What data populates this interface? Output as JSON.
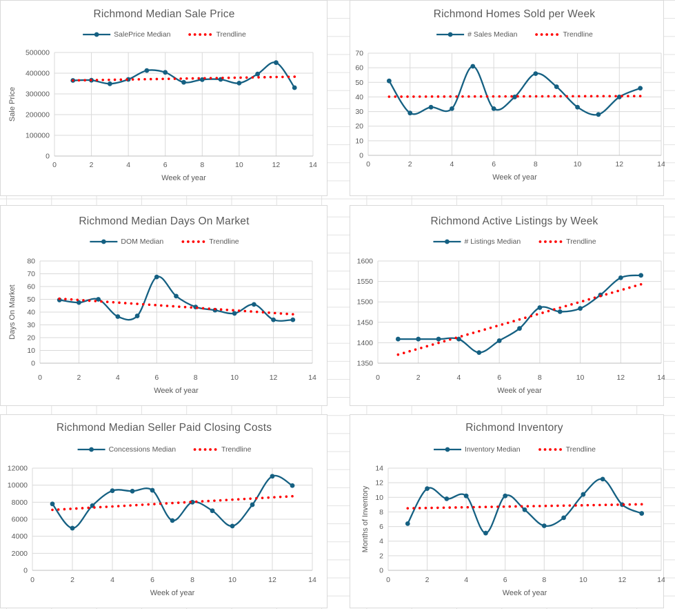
{
  "app": {
    "view": "richmond-market-dashboard"
  },
  "colors": {
    "series": "#156082",
    "trendline": "#ff0000",
    "text": "#595959",
    "grid": "#d9d9d9",
    "axis": "#bfbfbf",
    "chart_border": "#d9d9d9",
    "chart_bg": "#ffffff"
  },
  "chart_data": [
    {
      "type": "line",
      "title": "Richmond Median Sale Price",
      "xlabel": "Week of year",
      "ylabel": "Sale Price",
      "x": [
        1,
        2,
        3,
        4,
        5,
        6,
        7,
        8,
        9,
        10,
        11,
        12,
        13
      ],
      "xlim": [
        0,
        14
      ],
      "xticks": [
        0,
        2,
        4,
        6,
        8,
        10,
        12,
        14
      ],
      "ylim": [
        0,
        500000
      ],
      "yticks": [
        0,
        100000,
        200000,
        300000,
        400000,
        500000
      ],
      "grid": true,
      "legend_position": "top",
      "series": [
        {
          "name": "SalePrice Median",
          "values": [
            365000,
            366000,
            349000,
            370000,
            413000,
            404000,
            356000,
            369000,
            370000,
            352000,
            396000,
            451000,
            330000
          ]
        },
        {
          "name": "Trendline",
          "trend": true,
          "values": [
            365000,
            383000
          ]
        }
      ]
    },
    {
      "type": "line",
      "title": "Richmond Homes Sold per Week",
      "xlabel": "Week of year",
      "ylabel": "",
      "x": [
        1,
        2,
        3,
        4,
        5,
        6,
        7,
        8,
        9,
        10,
        11,
        12,
        13
      ],
      "xlim": [
        0,
        14
      ],
      "xticks": [
        0,
        2,
        4,
        6,
        8,
        10,
        12,
        14
      ],
      "ylim": [
        0,
        70
      ],
      "yticks": [
        0,
        10,
        20,
        30,
        40,
        50,
        60,
        70
      ],
      "grid": true,
      "legend_position": "top",
      "series": [
        {
          "name": "# Sales Median",
          "values": [
            51,
            29,
            33,
            32,
            61,
            32,
            40,
            56,
            47,
            33,
            28,
            40,
            46
          ]
        },
        {
          "name": "Trendline",
          "trend": true,
          "values": [
            40.2,
            40.6
          ]
        }
      ]
    },
    {
      "type": "line",
      "title": "Richmond Median Days On Market",
      "xlabel": "Week of year",
      "ylabel": "Days On Market",
      "x": [
        1,
        2,
        3,
        4,
        5,
        6,
        7,
        8,
        9,
        10,
        11,
        12,
        13
      ],
      "xlim": [
        0,
        14
      ],
      "xticks": [
        0,
        2,
        4,
        6,
        8,
        10,
        12,
        14
      ],
      "ylim": [
        0,
        80
      ],
      "yticks": [
        0,
        10,
        20,
        30,
        40,
        50,
        60,
        70,
        80
      ],
      "grid": true,
      "legend_position": "top",
      "series": [
        {
          "name": "DOM Median",
          "values": [
            49.5,
            47.5,
            50,
            36.5,
            37,
            67.5,
            52.5,
            44,
            41.5,
            39,
            46,
            34,
            34
          ]
        },
        {
          "name": "Trendline",
          "trend": true,
          "values": [
            50.5,
            38.3
          ]
        }
      ]
    },
    {
      "type": "line",
      "title": "Richmond Active Listings by Week",
      "xlabel": "Week of year",
      "ylabel": "",
      "x": [
        1,
        2,
        3,
        4,
        5,
        6,
        7,
        8,
        9,
        10,
        11,
        12,
        13
      ],
      "xlim": [
        0,
        14
      ],
      "xticks": [
        0,
        2,
        4,
        6,
        8,
        10,
        12,
        14
      ],
      "ylim": [
        1350,
        1600
      ],
      "yticks": [
        1350,
        1400,
        1450,
        1500,
        1550,
        1600
      ],
      "grid": true,
      "legend_position": "top",
      "series": [
        {
          "name": "# Listings Median",
          "values": [
            1409,
            1409,
            1409,
            1409,
            1376,
            1405,
            1435,
            1486,
            1476,
            1484,
            1517,
            1559,
            1565
          ]
        },
        {
          "name": "Trendline",
          "trend": true,
          "values": [
            1371,
            1543
          ]
        }
      ]
    },
    {
      "type": "line",
      "title": "Richmond Median Seller Paid Closing Costs",
      "xlabel": "Week of year",
      "ylabel": "",
      "x": [
        1,
        2,
        3,
        4,
        5,
        6,
        7,
        8,
        9,
        10,
        11,
        12,
        13
      ],
      "xlim": [
        0,
        14
      ],
      "xticks": [
        0,
        2,
        4,
        6,
        8,
        10,
        12,
        14
      ],
      "ylim": [
        0,
        12000
      ],
      "yticks": [
        0,
        2000,
        4000,
        6000,
        8000,
        10000,
        12000
      ],
      "grid": true,
      "legend_position": "top",
      "series": [
        {
          "name": "Concessions Median",
          "values": [
            7800,
            4950,
            7600,
            9350,
            9300,
            9400,
            5850,
            8000,
            7000,
            5200,
            7700,
            11050,
            9950
          ]
        },
        {
          "name": "Trendline",
          "trend": true,
          "values": [
            7100,
            8700
          ]
        }
      ]
    },
    {
      "type": "line",
      "title": "Richmond Inventory",
      "xlabel": "Week of year",
      "ylabel": "Months of Inventory",
      "x": [
        1,
        2,
        3,
        4,
        5,
        6,
        7,
        8,
        9,
        10,
        11,
        12,
        13
      ],
      "xlim": [
        0,
        14
      ],
      "xticks": [
        0,
        2,
        4,
        6,
        8,
        10,
        12,
        14
      ],
      "ylim": [
        0,
        14
      ],
      "yticks": [
        0,
        2,
        4,
        6,
        8,
        10,
        12,
        14
      ],
      "grid": true,
      "legend_position": "top",
      "series": [
        {
          "name": "Inventory Median",
          "values": [
            6.4,
            11.2,
            9.8,
            10.2,
            5.1,
            10.2,
            8.3,
            6.1,
            7.2,
            10.4,
            12.5,
            9.0,
            7.8
          ]
        },
        {
          "name": "Trendline",
          "trend": true,
          "values": [
            8.5,
            9.05
          ]
        }
      ]
    }
  ]
}
